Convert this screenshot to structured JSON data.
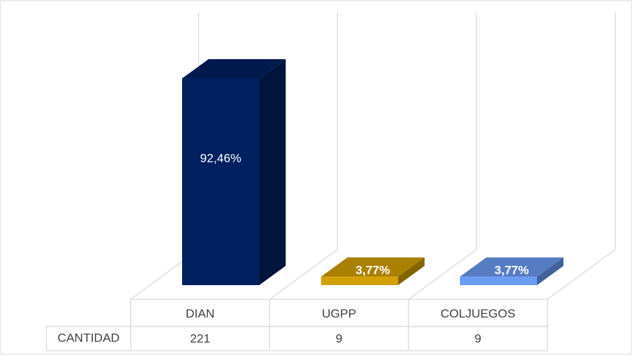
{
  "chart_data": {
    "type": "bar3d",
    "categories": [
      "DIAN",
      "UGPP",
      "COLJUEGOS"
    ],
    "values": [
      92.46,
      3.77,
      3.77
    ],
    "value_labels": [
      "92,46%",
      "3,77%",
      "3,77%"
    ],
    "colors": [
      "#002060",
      "#d4a000",
      "#6b9cf5"
    ],
    "table": {
      "row_label": "CANTIDAD",
      "values": [
        "221",
        "9",
        "9"
      ]
    }
  }
}
